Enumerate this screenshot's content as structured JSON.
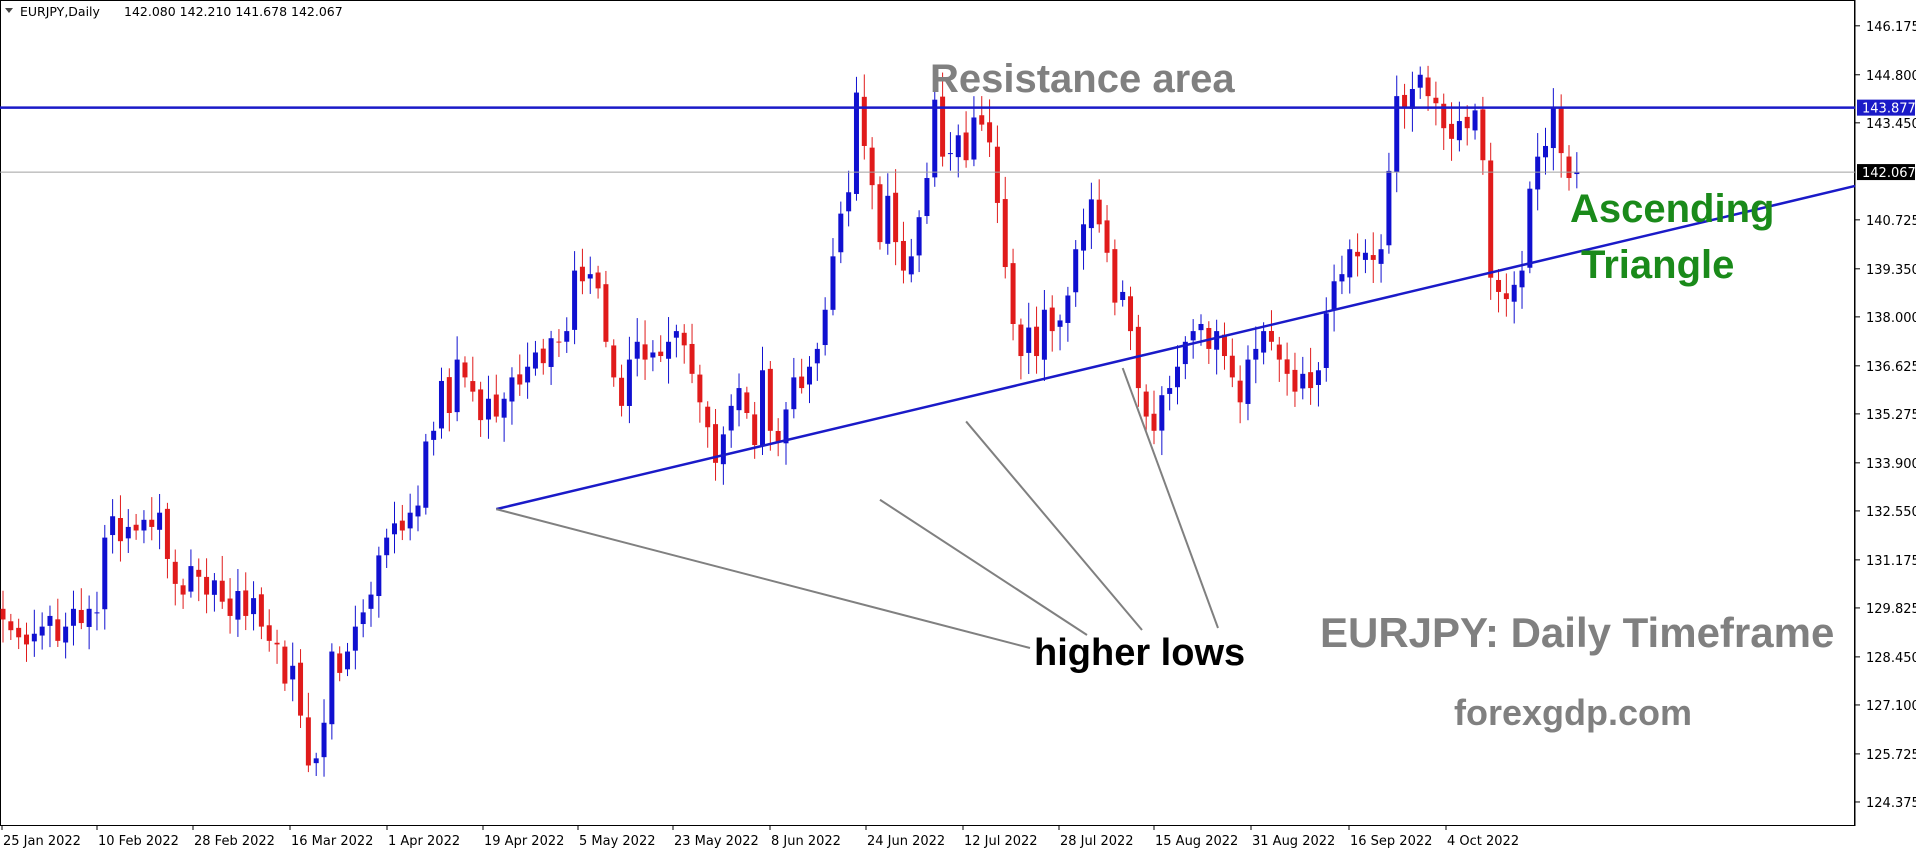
{
  "header": {
    "symbol_timeframe": "EURJPY,Daily",
    "ohlc": "142.080 142.210 141.678 142.067",
    "menu_icon": "triangle-down-icon"
  },
  "colors": {
    "bull": "#1010d0",
    "bear": "#e01b1b",
    "resistance": "#1a1ac8",
    "trendline": "#1a1ac8",
    "pointer": "#808080",
    "current_price_line": "#a0a0a0"
  },
  "chart_data": {
    "type": "candlestick",
    "symbol": "EURJPY",
    "timeframe": "Daily",
    "ylim": [
      123.7,
      146.9
    ],
    "y_ticks": [
      "146.175",
      "144.800",
      "143.450",
      "140.725",
      "139.350",
      "138.000",
      "136.625",
      "135.275",
      "133.900",
      "132.550",
      "131.175",
      "129.825",
      "128.450",
      "127.100",
      "125.725",
      "124.375"
    ],
    "x_labels": [
      "25 Jan 2022",
      "10 Feb 2022",
      "28 Feb 2022",
      "16 Mar 2022",
      "1 Apr 2022",
      "19 Apr 2022",
      "5 May 2022",
      "23 May 2022",
      "8 Jun 2022",
      "24 Jun 2022",
      "12 Jul 2022",
      "28 Jul 2022",
      "15 Aug 2022",
      "31 Aug 2022",
      "16 Sep 2022",
      "4 Oct 2022"
    ],
    "current_price": "142.067",
    "resistance_price": "143.877",
    "trendline": {
      "start": {
        "bar": 63,
        "price": 132.6
      },
      "end": {
        "bar": 193,
        "price": 139.4
      }
    },
    "closes": [
      129.5,
      129.2,
      129.0,
      128.8,
      129.1,
      129.3,
      129.6,
      128.9,
      129.3,
      129.8,
      129.4,
      129.8,
      129.7,
      131.8,
      132.4,
      131.7,
      132.1,
      132.0,
      132.3,
      132.1,
      132.5,
      131.2,
      130.5,
      130.2,
      131.0,
      130.7,
      130.2,
      130.6,
      130.0,
      129.6,
      130.3,
      129.6,
      130.1,
      129.3,
      128.9,
      128.8,
      127.7,
      128.2,
      126.8,
      125.4,
      125.6,
      126.6,
      128.6,
      128.0,
      128.6,
      129.3,
      129.7,
      130.2,
      131.3,
      131.8,
      132.2,
      132.0,
      132.5,
      132.7,
      134.5,
      134.8,
      136.2,
      135.3,
      136.8,
      136.3,
      135.9,
      135.1,
      135.7,
      135.2,
      135.7,
      136.3,
      136.1,
      136.6,
      137.0,
      136.7,
      137.4,
      137.3,
      137.6,
      139.3,
      139.0,
      139.2,
      138.8,
      137.3,
      136.3,
      135.5,
      136.8,
      137.3,
      136.8,
      137.0,
      136.9,
      137.3,
      137.6,
      137.2,
      136.4,
      135.6,
      134.9,
      133.9,
      134.7,
      135.5,
      136.0,
      135.3,
      134.4,
      136.5,
      134.8,
      134.5,
      135.4,
      136.3,
      136.0,
      136.6,
      137.1,
      138.2,
      139.7,
      140.9,
      141.5,
      144.3,
      142.8,
      141.7,
      140.1,
      141.4,
      140.1,
      139.3,
      139.7,
      140.8,
      141.9,
      144.1,
      142.5,
      142.6,
      143.1,
      142.4,
      143.6,
      143.4,
      142.9,
      141.2,
      139.4,
      137.8,
      136.9,
      137.7,
      136.9,
      138.2,
      137.6,
      137.9,
      138.6,
      139.9,
      140.6,
      141.3,
      140.6,
      139.8,
      138.4,
      138.7,
      137.6,
      136.0,
      135.2,
      134.8,
      135.8,
      136.0,
      136.6,
      137.3,
      137.6,
      137.8,
      137.1,
      137.6,
      136.9,
      136.3,
      135.6,
      136.8,
      137.1,
      137.6,
      137.3,
      136.8,
      136.4,
      135.9,
      136.4,
      136.0,
      136.5,
      138.1,
      139.0,
      139.2,
      139.9,
      139.7,
      139.8,
      139.6,
      139.9,
      142.1,
      144.2,
      143.9,
      144.4,
      144.8,
      144.2,
      144.0,
      143.3,
      143.0,
      143.5,
      143.3,
      143.8,
      142.4,
      139.1,
      138.7,
      138.5,
      138.9,
      139.3,
      141.6,
      142.5,
      142.8,
      143.9,
      142.6,
      141.9,
      142.067
    ],
    "annotations": {
      "resistance": "Resistance area",
      "pattern_line1": "Ascending",
      "pattern_line2": "Triangle",
      "higher_lows": "higher lows",
      "title": "EURJPY: Daily Timeframe",
      "site": "forexgdp.com"
    }
  }
}
